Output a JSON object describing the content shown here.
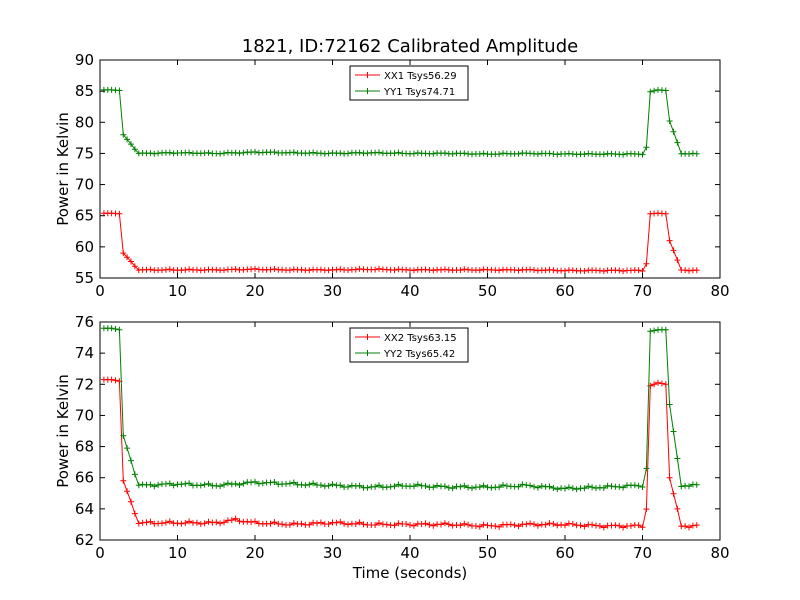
{
  "figure": {
    "title": "1821, ID:72162 Calibrated Amplitude"
  },
  "chart_data": [
    {
      "type": "line",
      "title": "1821, ID:72162 Calibrated Amplitude",
      "xlabel": "",
      "ylabel": "Power in Kelvin",
      "xlim": [
        0,
        80
      ],
      "ylim": [
        55,
        90
      ],
      "xticks": [
        0,
        10,
        20,
        30,
        40,
        50,
        60,
        70,
        80
      ],
      "yticks": [
        55,
        60,
        65,
        70,
        75,
        80,
        85,
        90
      ],
      "legend_position": "top-center",
      "grid": false,
      "x": [
        0.5,
        1.5,
        2.5,
        3.0,
        5,
        10,
        15,
        20,
        25,
        30,
        35,
        40,
        45,
        50,
        55,
        60,
        65,
        70.0,
        70.5,
        71.0,
        72.0,
        73.0,
        73.5,
        75,
        77
      ],
      "series": [
        {
          "name": "XX1 Tsys56.29",
          "color": "#ff0000",
          "values": [
            65.4,
            65.4,
            65.3,
            59.0,
            56.3,
            56.3,
            56.3,
            56.4,
            56.3,
            56.3,
            56.4,
            56.3,
            56.3,
            56.3,
            56.3,
            56.2,
            56.2,
            56.2,
            57.3,
            65.3,
            65.4,
            65.3,
            61.0,
            56.3,
            56.2
          ]
        },
        {
          "name": "YY1 Tsys74.71",
          "color": "#008000",
          "values": [
            85.2,
            85.2,
            85.1,
            78.0,
            75.0,
            75.1,
            75.0,
            75.2,
            75.1,
            75.0,
            75.1,
            75.0,
            75.0,
            74.9,
            75.0,
            74.9,
            74.9,
            74.9,
            76.0,
            84.9,
            85.2,
            85.1,
            80.2,
            75.0,
            74.9
          ]
        }
      ]
    },
    {
      "type": "line",
      "title": "",
      "xlabel": "Time (seconds)",
      "ylabel": "Power in Kelvin",
      "xlim": [
        0,
        80
      ],
      "ylim": [
        62,
        76
      ],
      "xticks": [
        0,
        10,
        20,
        30,
        40,
        50,
        60,
        70,
        80
      ],
      "yticks": [
        62,
        64,
        66,
        68,
        70,
        72,
        74,
        76
      ],
      "legend_position": "top-center",
      "grid": false,
      "x": [
        0.5,
        1.5,
        2.5,
        3.0,
        5,
        10,
        15,
        17.5,
        20,
        25,
        30,
        35,
        40,
        45,
        50,
        55,
        60,
        65,
        70.0,
        70.5,
        71.0,
        72.0,
        73.0,
        73.5,
        75,
        77
      ],
      "series": [
        {
          "name": "XX2 Tsys63.15",
          "color": "#ff0000",
          "values": [
            72.3,
            72.3,
            72.2,
            65.8,
            63.1,
            63.1,
            63.1,
            63.3,
            63.1,
            63.0,
            63.1,
            63.0,
            63.0,
            63.0,
            62.9,
            63.0,
            63.0,
            62.9,
            62.9,
            64.0,
            71.9,
            72.1,
            72.0,
            66.0,
            62.9,
            62.9
          ]
        },
        {
          "name": "YY2 Tsys65.42",
          "color": "#008000",
          "values": [
            75.6,
            75.6,
            75.5,
            68.7,
            65.5,
            65.6,
            65.5,
            65.6,
            65.7,
            65.6,
            65.5,
            65.4,
            65.5,
            65.4,
            65.4,
            65.5,
            65.3,
            65.4,
            65.5,
            66.6,
            75.4,
            75.5,
            75.5,
            70.7,
            65.5,
            65.5
          ]
        }
      ]
    }
  ]
}
